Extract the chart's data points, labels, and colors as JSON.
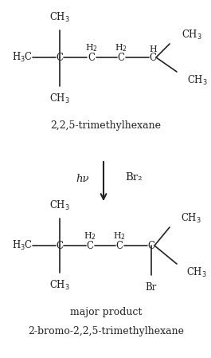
{
  "bg_color": "#ffffff",
  "text_color": "#222222",
  "mol1_label": "2,2,5-trimethylhexane",
  "mol2_label": "major product",
  "mol3_label": "2-bromo-2,2,5-trimethylhexane",
  "reagent_hv": "hν",
  "reagent_br2": "Br₂",
  "fs": 8.5,
  "fs_label": 9,
  "fs_reagent": 9.5,
  "lw": 1.2
}
